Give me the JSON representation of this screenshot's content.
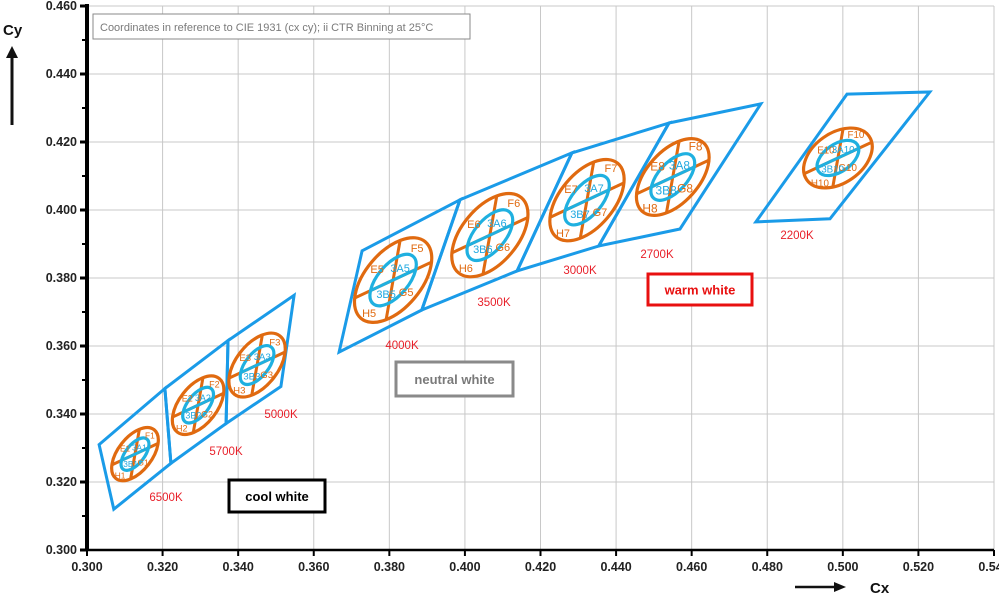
{
  "chart_data": {
    "type": "scatter",
    "title": "",
    "note": "Coordinates in reference to CIE 1931 (cx cy); ii CTR Binning at 25°C",
    "xlabel": "Cx",
    "ylabel": "Cy",
    "xlim": [
      0.3,
      0.54
    ],
    "ylim": [
      0.3,
      0.46
    ],
    "grid": true,
    "x_ticks": [
      "0.300",
      "0.320",
      "0.340",
      "0.360",
      "0.380",
      "0.400",
      "0.420",
      "0.440",
      "0.460",
      "0.480",
      "0.500",
      "0.520",
      "0.540"
    ],
    "y_ticks": [
      "0.300",
      "0.320",
      "0.340",
      "0.360",
      "0.380",
      "0.400",
      "0.420",
      "0.440",
      "0.460"
    ],
    "colors": {
      "bin_outline": "#1a9be8",
      "ellipse_outer": "#e06a10",
      "ellipse_inner": "#1fb0e0",
      "cct_label": "#e8202a",
      "grid": "#c8c8c8"
    },
    "groups": [
      {
        "label": "cool white",
        "border": "#000000",
        "text_color": "#000000"
      },
      {
        "label": "neutral white",
        "border": "#8a8a8a",
        "text_color": "#7a7a7a"
      },
      {
        "label": "warm white",
        "border": "#e81010",
        "text_color": "#e81010"
      }
    ],
    "cct_bins": [
      {
        "cct": "6500K",
        "corners": [
          [
            0.3032,
            0.331
          ],
          [
            0.3206,
            0.3475
          ],
          [
            0.3222,
            0.3255
          ],
          [
            0.3071,
            0.312
          ]
        ],
        "ellipse_center": [
          0.3127,
          0.3282
        ],
        "labels": {
          "E": "E1",
          "F": "F1",
          "G": "G1",
          "H": "H1",
          "A": "3A1",
          "B": "3B1"
        }
      },
      {
        "cct": "5700K",
        "corners": [
          [
            0.3206,
            0.3475
          ],
          [
            0.3373,
            0.3616
          ],
          [
            0.3368,
            0.3372
          ],
          [
            0.3222,
            0.3255
          ]
        ],
        "ellipse_center": [
          0.3294,
          0.3426
        ],
        "labels": {
          "E": "E2",
          "F": "F2",
          "G": "G2",
          "H": "H2",
          "A": "3A2",
          "B": "3B2"
        }
      },
      {
        "cct": "5000K",
        "corners": [
          [
            0.3373,
            0.3616
          ],
          [
            0.3548,
            0.3749
          ],
          [
            0.3513,
            0.3481
          ],
          [
            0.3368,
            0.3372
          ]
        ],
        "ellipse_center": [
          0.345,
          0.3544
        ],
        "labels": {
          "E": "E3",
          "F": "F3",
          "G": "G3",
          "H": "H3",
          "A": "3A3",
          "B": "3B3"
        }
      },
      {
        "cct": "4000K",
        "corners": [
          [
            0.3728,
            0.388
          ],
          [
            0.3987,
            0.403
          ],
          [
            0.3886,
            0.3706
          ],
          [
            0.3667,
            0.3582
          ]
        ],
        "ellipse_center": [
          0.381,
          0.3794
        ],
        "labels": {
          "E": "E5",
          "F": "F5",
          "G": "G5",
          "H": "H5",
          "A": "3A5",
          "B": "3B5"
        }
      },
      {
        "cct": "3500K",
        "corners": [
          [
            0.3987,
            0.403
          ],
          [
            0.4283,
            0.4168
          ],
          [
            0.4138,
            0.3821
          ],
          [
            0.3886,
            0.3706
          ]
        ],
        "ellipse_center": [
          0.4066,
          0.3926
        ],
        "labels": {
          "E": "E6",
          "F": "F6",
          "G": "G6",
          "H": "H6",
          "A": "3A6",
          "B": "3B6"
        }
      },
      {
        "cct": "3000K",
        "corners": [
          [
            0.4283,
            0.4168
          ],
          [
            0.454,
            0.4256
          ],
          [
            0.4354,
            0.3894
          ],
          [
            0.4138,
            0.3821
          ]
        ],
        "ellipse_center": [
          0.4323,
          0.4029
        ],
        "labels": {
          "E": "E7",
          "F": "F7",
          "G": "G7",
          "H": "H7",
          "A": "3A7",
          "B": "3B7"
        }
      },
      {
        "cct": "2700K",
        "corners": [
          [
            0.454,
            0.4256
          ],
          [
            0.4783,
            0.4312
          ],
          [
            0.4569,
            0.3944
          ],
          [
            0.4354,
            0.3894
          ]
        ],
        "ellipse_center": [
          0.455,
          0.4097
        ],
        "labels": {
          "E": "E8",
          "F": "F8",
          "G": "G8",
          "H": "H8",
          "A": "3A8",
          "B": "3B8"
        }
      },
      {
        "cct": "2200K",
        "corners": [
          [
            0.5011,
            0.4341
          ],
          [
            0.523,
            0.4347
          ],
          [
            0.4966,
            0.3974
          ],
          [
            0.477,
            0.3965
          ]
        ],
        "ellipse_center": [
          0.4987,
          0.4153
        ],
        "labels": {
          "E": "E10",
          "F": "F10",
          "G": "G10",
          "H": "H10",
          "A": "3A10",
          "B": "3B10"
        }
      }
    ]
  }
}
